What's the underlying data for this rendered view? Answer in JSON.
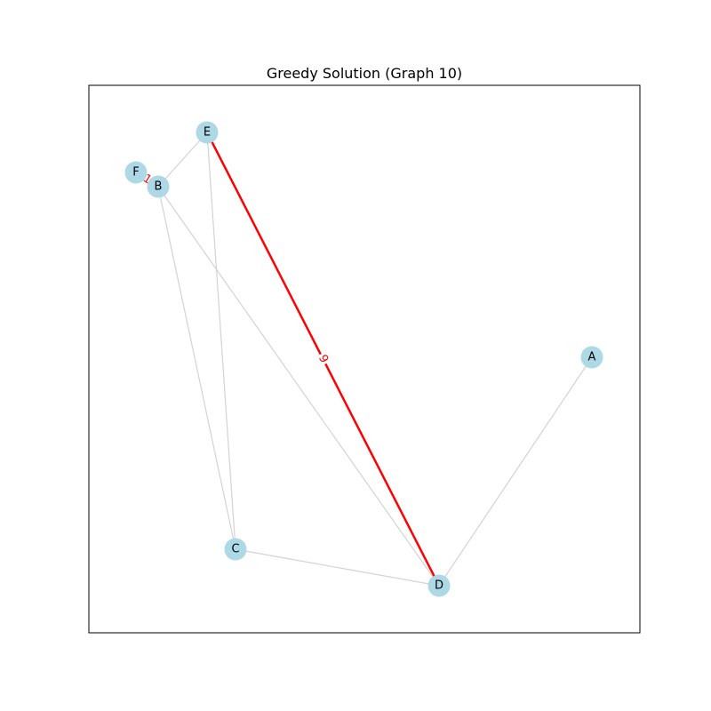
{
  "title": "Greedy Solution (Graph 10)",
  "colors": {
    "node_fill": "#add8e6",
    "edge_default": "#d3d3d3",
    "edge_highlight": "#ff0000",
    "frame": "#000000",
    "background": "#ffffff"
  },
  "nodes": [
    {
      "id": "A",
      "label": "A"
    },
    {
      "id": "B",
      "label": "B"
    },
    {
      "id": "C",
      "label": "C"
    },
    {
      "id": "D",
      "label": "D"
    },
    {
      "id": "E",
      "label": "E"
    },
    {
      "id": "F",
      "label": "F"
    }
  ],
  "edges": [
    {
      "source": "F",
      "target": "B",
      "highlighted": true,
      "label": "1"
    },
    {
      "source": "E",
      "target": "B",
      "highlighted": false,
      "label": ""
    },
    {
      "source": "E",
      "target": "C",
      "highlighted": false,
      "label": ""
    },
    {
      "source": "B",
      "target": "C",
      "highlighted": false,
      "label": ""
    },
    {
      "source": "B",
      "target": "D",
      "highlighted": false,
      "label": ""
    },
    {
      "source": "E",
      "target": "D",
      "highlighted": true,
      "label": "9"
    },
    {
      "source": "C",
      "target": "D",
      "highlighted": false,
      "label": ""
    },
    {
      "source": "A",
      "target": "D",
      "highlighted": false,
      "label": ""
    }
  ]
}
